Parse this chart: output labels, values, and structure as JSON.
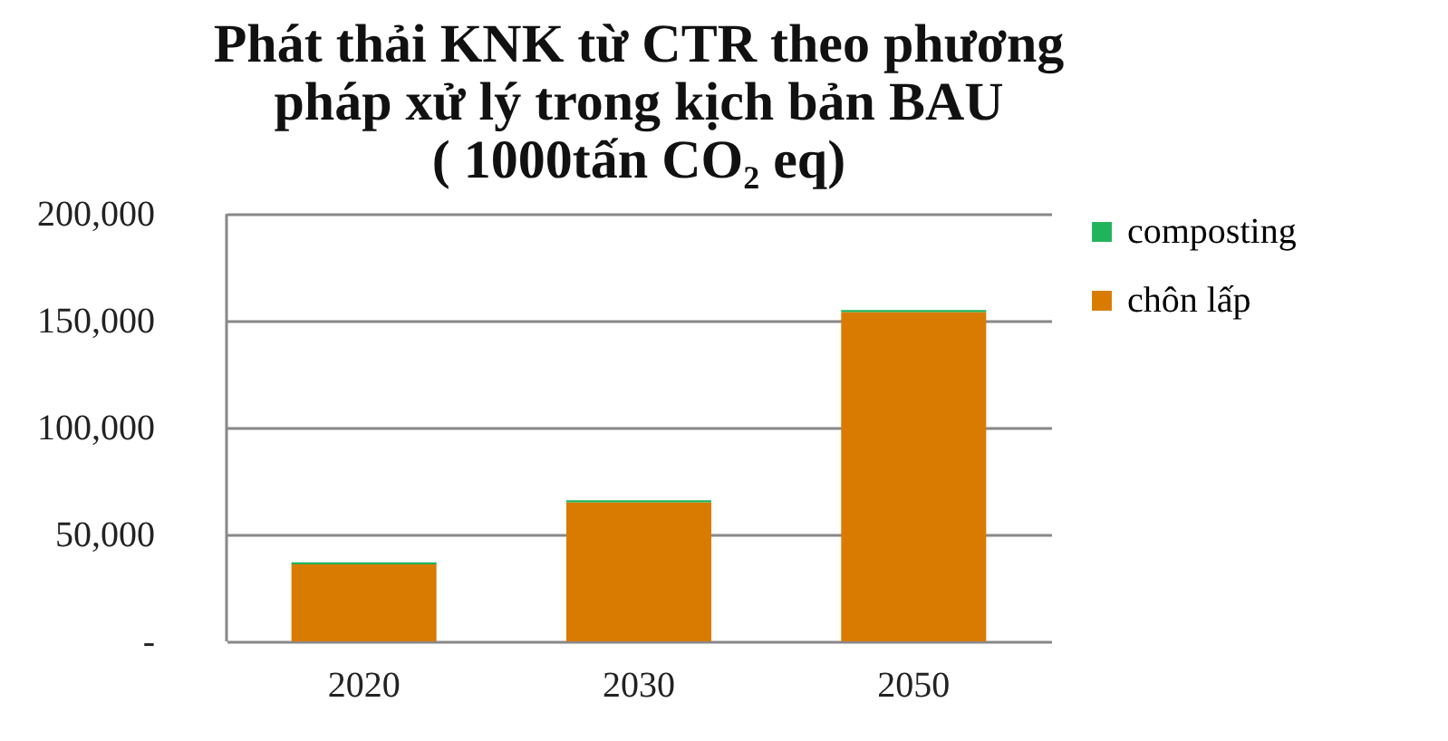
{
  "chart_data": {
    "type": "bar",
    "title": "Phát thải KNK từ CTR theo phương\npháp xử lý trong kịch bản BAU\n( 1000tấn CO₂ eq)",
    "categories": [
      "2020",
      "2030",
      "2050"
    ],
    "stacked": true,
    "series": [
      {
        "name": "chôn lấp",
        "color": "#d97b00",
        "values": [
          36000,
          65000,
          154000
        ]
      },
      {
        "name": "composting",
        "color": "#1fb45a",
        "values": [
          1000,
          1000,
          1000
        ]
      }
    ],
    "ylim": [
      0,
      200000
    ],
    "yticks": [
      {
        "value": 0,
        "label": "-"
      },
      {
        "value": 50000,
        "label": "50,000"
      },
      {
        "value": 100000,
        "label": "100,000"
      },
      {
        "value": 150000,
        "label": "150,000"
      },
      {
        "value": 200000,
        "label": "200,000"
      }
    ],
    "grid": "y",
    "legend": "right"
  }
}
